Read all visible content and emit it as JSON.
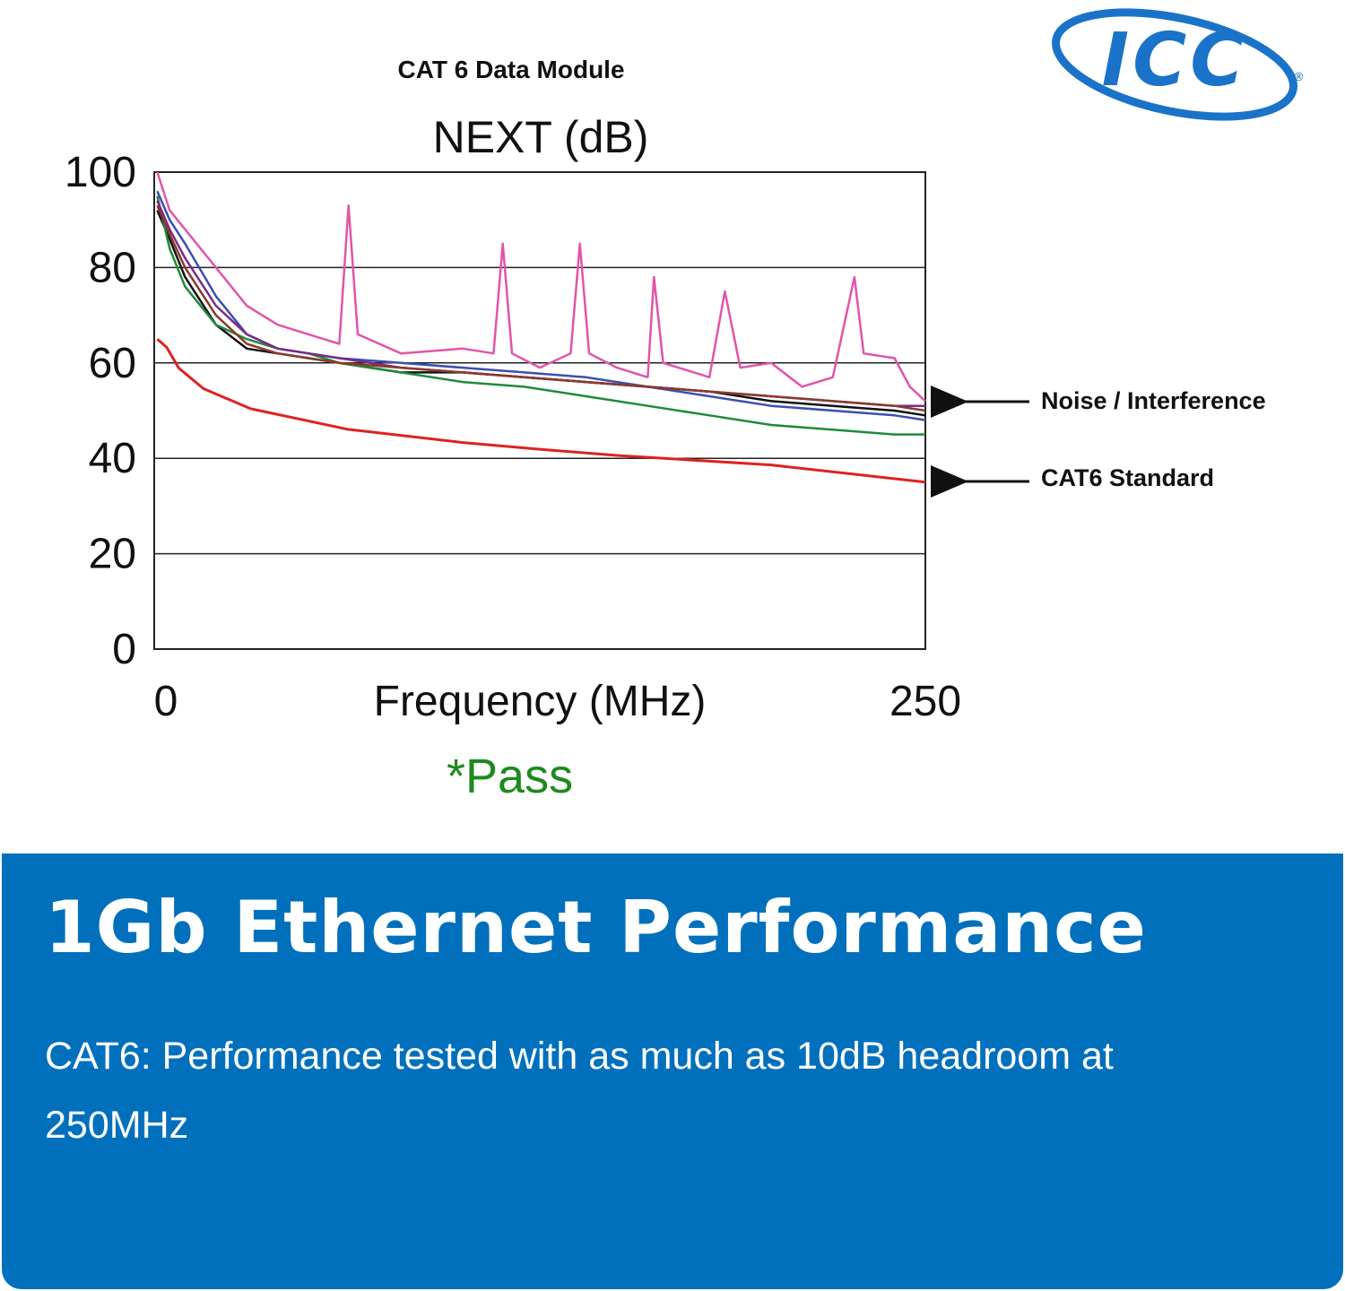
{
  "logo": {
    "text": "ICC",
    "registered_mark": "®",
    "brand_color": "#1a73c8"
  },
  "module_title": "CAT 6 Data Module",
  "chart_data": {
    "type": "line",
    "title": "NEXT (dB)",
    "xlabel": "Frequency (MHz)",
    "x_tick_labels": [
      "0",
      "250"
    ],
    "y_tick_labels": [
      "100",
      "80",
      "60",
      "40",
      "20",
      "0"
    ],
    "xlim": [
      0,
      250
    ],
    "ylim": [
      0,
      100
    ],
    "grid": "horizontal",
    "annotations": [
      {
        "text": "Noise / Interference",
        "arrow_to": "noise_series",
        "y": 52
      },
      {
        "text": "CAT6 Standard",
        "arrow_to": "standard_series",
        "y": 35
      }
    ],
    "standard_series": {
      "color": "#dd2222",
      "x": [
        1,
        4,
        8,
        16,
        31.25,
        62.5,
        100,
        125,
        150,
        200,
        250
      ],
      "values": [
        65,
        63.3,
        58.9,
        54.6,
        50.4,
        46.1,
        43.3,
        41.9,
        40.6,
        38.6,
        35
      ]
    },
    "noise_series": [
      {
        "color": "#e055a8",
        "x": [
          1,
          5,
          10,
          20,
          30,
          40,
          50,
          60,
          63,
          66,
          80,
          100,
          110,
          113,
          116,
          125,
          135,
          138,
          141,
          150,
          160,
          162,
          165,
          175,
          180,
          185,
          190,
          200,
          210,
          220,
          227,
          230,
          240,
          245,
          250
        ],
        "values": [
          100,
          92,
          88,
          80,
          72,
          68,
          66,
          64,
          93,
          66,
          62,
          63,
          62,
          85,
          62,
          59,
          62,
          85,
          62,
          59,
          57,
          78,
          60,
          58,
          57,
          75,
          59,
          60,
          55,
          57,
          78,
          62,
          61,
          55,
          52
        ]
      },
      {
        "color": "#3a4fb0",
        "x": [
          1,
          5,
          10,
          20,
          30,
          40,
          50,
          60,
          80,
          100,
          120,
          140,
          160,
          180,
          200,
          220,
          240,
          250
        ],
        "values": [
          96,
          90,
          85,
          74,
          66,
          63,
          62,
          61,
          60,
          59,
          58,
          57,
          55,
          53,
          51,
          50,
          49,
          48
        ]
      },
      {
        "color": "#111111",
        "x": [
          1,
          5,
          10,
          20,
          30,
          40,
          50,
          60,
          80,
          100,
          120,
          140,
          160,
          180,
          200,
          220,
          240,
          250
        ],
        "values": [
          92,
          86,
          78,
          68,
          63,
          62,
          61,
          60,
          58,
          58,
          57,
          56,
          55,
          54,
          52,
          51,
          50,
          49
        ]
      },
      {
        "color": "#1f8a3c",
        "x": [
          1,
          5,
          10,
          20,
          30,
          40,
          50,
          60,
          80,
          100,
          120,
          140,
          160,
          180,
          200,
          220,
          240,
          250
        ],
        "values": [
          95,
          84,
          76,
          68,
          65,
          63,
          62,
          60,
          58,
          56,
          55,
          53,
          51,
          49,
          47,
          46,
          45,
          45
        ]
      },
      {
        "color": "#7a2a8a",
        "x": [
          1,
          5,
          10,
          20,
          30,
          40,
          50,
          60,
          80,
          100,
          120,
          140,
          160,
          180,
          200,
          220,
          240,
          250
        ],
        "values": [
          94,
          88,
          82,
          72,
          66,
          63,
          62,
          61,
          59,
          58,
          57,
          56,
          55,
          54,
          53,
          52,
          51,
          51
        ]
      },
      {
        "color": "#8a3a2a",
        "x": [
          1,
          5,
          10,
          20,
          30,
          40,
          50,
          60,
          80,
          100,
          120,
          140,
          160,
          180,
          200,
          220,
          240,
          250
        ],
        "values": [
          93,
          87,
          80,
          70,
          64,
          62,
          61,
          60,
          59,
          58,
          57,
          56,
          55,
          54,
          53,
          52,
          51,
          50
        ]
      }
    ]
  },
  "pass_label": "*Pass",
  "pass_color": "#1e8a1e",
  "banner": {
    "color": "#0070bd",
    "title": "1Gb Ethernet Performance",
    "body": "CAT6: Performance tested with as much as 10dB headroom at 250MHz"
  }
}
